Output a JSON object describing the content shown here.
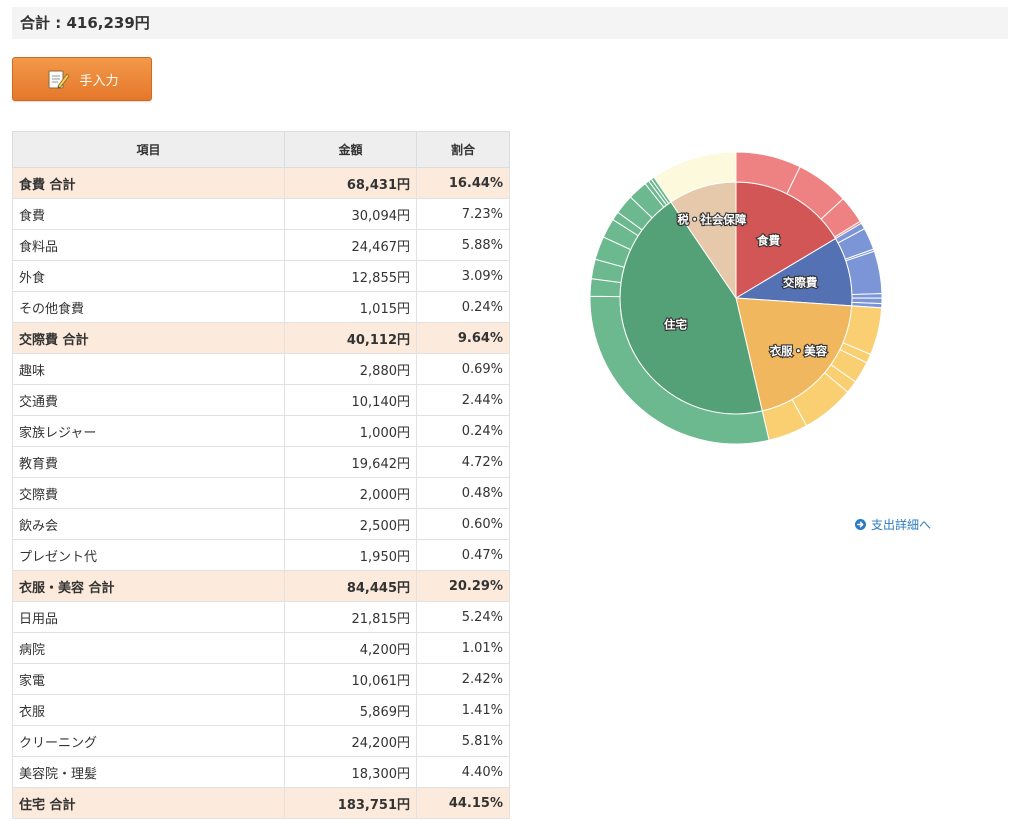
{
  "summary": {
    "total_text": "合計 : 416,239円"
  },
  "toolbar": {
    "manual_entry_label": "手入力",
    "manual_entry_icon": "pencil-note-icon"
  },
  "table": {
    "headers": {
      "item": "項目",
      "amount": "金額",
      "ratio": "割合"
    },
    "rows": [
      {
        "type": "total",
        "item": "食費 合計",
        "amount": "68,431円",
        "ratio": "16.44%"
      },
      {
        "type": "item",
        "item": "食費",
        "amount": "30,094円",
        "ratio": "7.23%"
      },
      {
        "type": "item",
        "item": "食料品",
        "amount": "24,467円",
        "ratio": "5.88%"
      },
      {
        "type": "item",
        "item": "外食",
        "amount": "12,855円",
        "ratio": "3.09%"
      },
      {
        "type": "item",
        "item": "その他食費",
        "amount": "1,015円",
        "ratio": "0.24%"
      },
      {
        "type": "total",
        "item": "交際費 合計",
        "amount": "40,112円",
        "ratio": "9.64%"
      },
      {
        "type": "item",
        "item": "趣味",
        "amount": "2,880円",
        "ratio": "0.69%"
      },
      {
        "type": "item",
        "item": "交通費",
        "amount": "10,140円",
        "ratio": "2.44%"
      },
      {
        "type": "item",
        "item": "家族レジャー",
        "amount": "1,000円",
        "ratio": "0.24%"
      },
      {
        "type": "item",
        "item": "教育費",
        "amount": "19,642円",
        "ratio": "4.72%"
      },
      {
        "type": "item",
        "item": "交際費",
        "amount": "2,000円",
        "ratio": "0.48%"
      },
      {
        "type": "item",
        "item": "飲み会",
        "amount": "2,500円",
        "ratio": "0.60%"
      },
      {
        "type": "item",
        "item": "プレゼント代",
        "amount": "1,950円",
        "ratio": "0.47%"
      },
      {
        "type": "total",
        "item": "衣服・美容 合計",
        "amount": "84,445円",
        "ratio": "20.29%"
      },
      {
        "type": "item",
        "item": "日用品",
        "amount": "21,815円",
        "ratio": "5.24%"
      },
      {
        "type": "item",
        "item": "病院",
        "amount": "4,200円",
        "ratio": "1.01%"
      },
      {
        "type": "item",
        "item": "家電",
        "amount": "10,061円",
        "ratio": "2.42%"
      },
      {
        "type": "item",
        "item": "衣服",
        "amount": "5,869円",
        "ratio": "1.41%"
      },
      {
        "type": "item",
        "item": "クリーニング",
        "amount": "24,200円",
        "ratio": "5.81%"
      },
      {
        "type": "item",
        "item": "美容院・理髪",
        "amount": "18,300円",
        "ratio": "4.40%"
      },
      {
        "type": "total",
        "item": "住宅 合計",
        "amount": "183,751円",
        "ratio": "44.15%"
      }
    ]
  },
  "chart_data": {
    "type": "pie",
    "subtype": "sunburst",
    "inner": [
      {
        "label": "食費",
        "value": 68431,
        "color": "#d35657"
      },
      {
        "label": "交際費",
        "value": 40112,
        "color": "#5471b3"
      },
      {
        "label": "衣服・美容",
        "value": 84445,
        "color": "#f0b75e"
      },
      {
        "label": "住宅",
        "value": 183751,
        "color": "#55a177"
      },
      {
        "label": "税・社会保障",
        "value": 39500,
        "color": "#e6c9aa"
      }
    ],
    "outer": [
      {
        "parent": "食費",
        "values": [
          30094,
          24467,
          12855,
          1015
        ],
        "color": "#ee8282"
      },
      {
        "parent": "交際費",
        "values": [
          2880,
          10140,
          1000,
          19642,
          2000,
          2500,
          1950
        ],
        "color": "#7b95d6"
      },
      {
        "parent": "衣服・美容",
        "values": [
          21815,
          4200,
          10061,
          5869,
          24200,
          18300
        ],
        "color": "#f9cf71"
      },
      {
        "parent": "住宅",
        "values": [
          120000,
          8000,
          9000,
          10751,
          9000,
          4000,
          9000,
          9000,
          2000,
          1500,
          1500
        ],
        "color": "#6cb88f"
      },
      {
        "parent": "税・社会保障",
        "values": [
          39500
        ],
        "color": "#fdf9dd"
      }
    ]
  },
  "links": {
    "detail_label": "支出詳細へ",
    "detail_icon": "arrow-circle-right-icon"
  }
}
